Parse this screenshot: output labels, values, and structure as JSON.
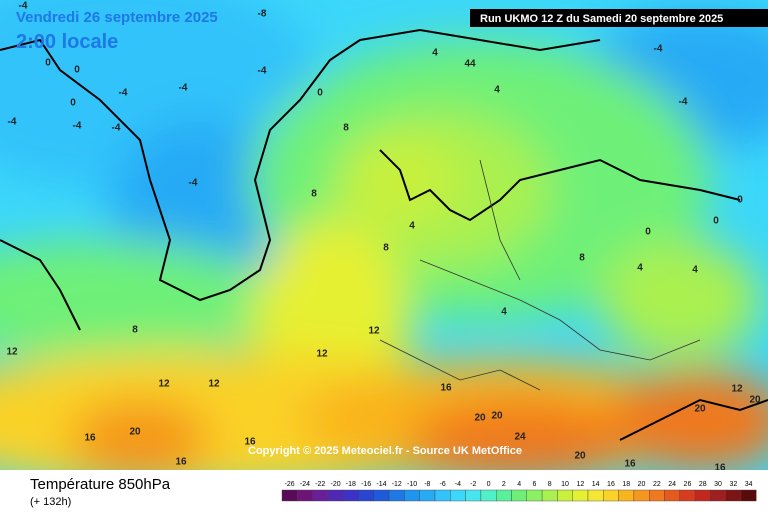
{
  "header": {
    "date": "Vendredi 26 septembre 2025",
    "time": "2:00 locale",
    "run": "Run UKMO 12 Z du Samedi 20 septembre 2025",
    "copyright": "Copyright © 2025 Meteociel.fr - Source UK MetOffice"
  },
  "footer": {
    "title": "Température 850hPa",
    "lead": "(+ 132h)"
  },
  "legend": {
    "ticks": [
      -26,
      -24,
      -22,
      -20,
      -18,
      -16,
      -14,
      -12,
      -10,
      -8,
      -6,
      -4,
      -2,
      0,
      2,
      4,
      6,
      8,
      10,
      12,
      14,
      16,
      18,
      20,
      22,
      24,
      26,
      28,
      30,
      32,
      34
    ],
    "colors": [
      "#5a0a5a",
      "#6e1478",
      "#6a1e9a",
      "#5028b4",
      "#3c32c8",
      "#2846d2",
      "#1e5adc",
      "#1e78e6",
      "#1e96f0",
      "#28aaf5",
      "#32c3fa",
      "#3cd7fa",
      "#46e6f0",
      "#50f0c8",
      "#5af09b",
      "#6ef078",
      "#8cf064",
      "#aaf050",
      "#c8f03c",
      "#e6f032",
      "#f5e632",
      "#fad228",
      "#fab41e",
      "#f5961e",
      "#f0781e",
      "#e65a1e",
      "#d73c1e",
      "#c3281e",
      "#a01e1e",
      "#7d1414",
      "#5a0a0a"
    ]
  },
  "map_labels": [
    0,
    0,
    0,
    -4,
    -4,
    -4,
    -4,
    -4,
    -4,
    0,
    4,
    44,
    8,
    8,
    8,
    4,
    4,
    4,
    4,
    8,
    4,
    8,
    12,
    12,
    12,
    12,
    12,
    16,
    16,
    16,
    20,
    20,
    20,
    24,
    20,
    20,
    12,
    0,
    0,
    0,
    -4,
    -4,
    -4,
    -4,
    -8,
    16,
    16,
    20,
    16
  ]
}
